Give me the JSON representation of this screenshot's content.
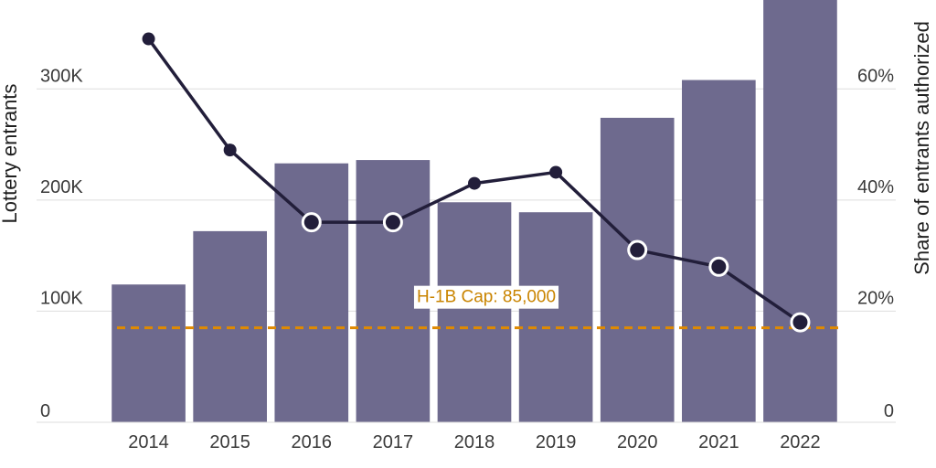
{
  "chart_data": {
    "type": "bar",
    "categories": [
      "2014",
      "2015",
      "2016",
      "2017",
      "2018",
      "2019",
      "2020",
      "2021",
      "2022"
    ],
    "series": [
      {
        "axis": "left",
        "type": "bar",
        "values": [
          124000,
          172000,
          233000,
          236000,
          198000,
          189000,
          274000,
          308000,
          380000
        ]
      },
      {
        "axis": "right",
        "type": "line",
        "values": [
          69,
          49,
          36,
          36,
          43,
          45,
          31,
          28,
          18
        ],
        "marker_style": [
          "filled",
          "filled",
          "hollow",
          "hollow",
          "filled",
          "filled",
          "hollow",
          "hollow",
          "hollow"
        ]
      }
    ],
    "ylabel": "Lottery entrants",
    "y2label": "Share of entrants authorized",
    "ylim": [
      0,
      380000
    ],
    "y2lim": [
      0,
      76
    ],
    "yticks": [
      0,
      100000,
      200000,
      300000
    ],
    "ytick_labels": [
      "0",
      "100K",
      "200K",
      "300K"
    ],
    "y2ticks": [
      0,
      20,
      40,
      60
    ],
    "y2tick_labels": [
      "0",
      "20%",
      "40%",
      "60%"
    ],
    "grid": true,
    "reference_line": {
      "value": 85000,
      "label": "H-1B Cap: 85,000",
      "style": "dashed"
    },
    "colors": {
      "bar": "#6e6a8e",
      "line": "#221e3a",
      "cap": "#e08a00",
      "cap_text": "#c98400",
      "grid": "#dddddd"
    }
  }
}
